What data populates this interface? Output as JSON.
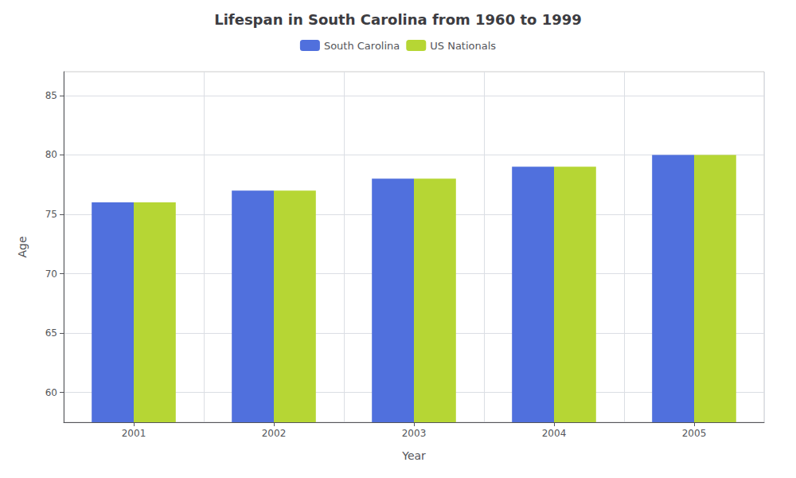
{
  "chart_data": {
    "type": "bar",
    "title": "Lifespan in South Carolina from 1960 to 1999",
    "xlabel": "Year",
    "ylabel": "Age",
    "categories": [
      "2001",
      "2002",
      "2003",
      "2004",
      "2005"
    ],
    "series": [
      {
        "name": "South Carolina",
        "values": [
          76,
          77,
          78,
          79,
          80
        ]
      },
      {
        "name": "US Nationals",
        "values": [
          76,
          77,
          78,
          79,
          80
        ]
      }
    ],
    "ylim": [
      57.5,
      87
    ],
    "yticks": [
      60,
      65,
      70,
      75,
      80,
      85
    ],
    "grid": true,
    "legend": "top"
  }
}
